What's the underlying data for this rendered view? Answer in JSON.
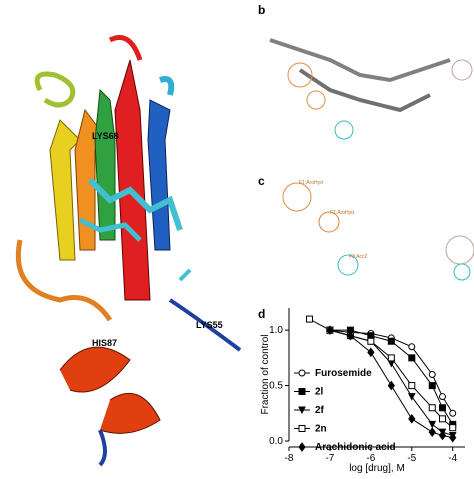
{
  "panel_labels": [
    "b",
    "c",
    "d"
  ],
  "residue_labels": [
    "LYS68",
    "LYS55",
    "HIS87"
  ],
  "pharmacophore_labels": [
    "F1:AroHyd",
    "F2:AroHyd",
    "F3:Acc2"
  ],
  "chart_data": {
    "type": "line",
    "xlabel": "log [drug], M",
    "ylabel": "Fraction of control",
    "xlim": [
      -8,
      -3.7
    ],
    "xticks": [
      -8,
      -7,
      -6,
      -5,
      -4
    ],
    "ylim": [
      0,
      1.2
    ],
    "yticks": [
      {
        "value": 0,
        "label": "0.0"
      },
      {
        "value": 0.5,
        "label": "0.5"
      },
      {
        "value": 1,
        "label": "1.0"
      }
    ],
    "series": [
      {
        "name": "Furosemide",
        "color": "#000000",
        "marker": "circle-open",
        "x": [
          -7,
          -6.5,
          -6,
          -5.5,
          -5,
          -4.5,
          -4.25,
          -4
        ],
        "values": [
          1.0,
          0.98,
          0.97,
          0.93,
          0.85,
          0.6,
          0.4,
          0.25
        ]
      },
      {
        "name": "2l",
        "color": "#000000",
        "marker": "square",
        "x": [
          -7,
          -6.5,
          -6,
          -5.5,
          -5,
          -4.5,
          -4.25,
          -4
        ],
        "values": [
          1.0,
          1.0,
          0.95,
          0.9,
          0.75,
          0.5,
          0.3,
          0.15
        ]
      },
      {
        "name": "2f",
        "color": "#000000",
        "marker": "triangle-down",
        "x": [
          -7,
          -6.5,
          -6,
          -5.5,
          -5,
          -4.5,
          -4.25,
          -4
        ],
        "values": [
          1.0,
          0.95,
          0.9,
          0.7,
          0.4,
          0.15,
          0.08,
          0.05
        ]
      },
      {
        "name": "2n",
        "color": "#000000",
        "marker": "square-open",
        "x": [
          -7.5,
          -7,
          -6.5,
          -6,
          -5.5,
          -5,
          -4.5,
          -4.25,
          -4
        ],
        "values": [
          1.1,
          1.0,
          0.95,
          0.9,
          0.75,
          0.5,
          0.3,
          0.2,
          0.12
        ]
      },
      {
        "name": "Arachidonic acid",
        "color": "#000000",
        "marker": "diamond",
        "x": [
          -7,
          -6.5,
          -6,
          -5.5,
          -5,
          -4.5,
          -4.25,
          -4
        ],
        "values": [
          1.0,
          0.95,
          0.8,
          0.5,
          0.2,
          0.08,
          0.05,
          0.03
        ]
      }
    ]
  }
}
